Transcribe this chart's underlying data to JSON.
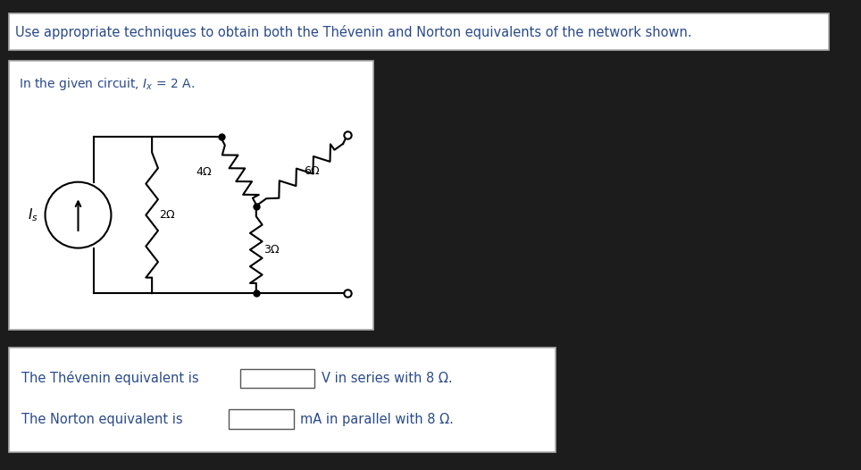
{
  "bg_color": "#1c1c1c",
  "title_text": "Use appropriate techniques to obtain both the Thévenin and Norton equivalents of the network shown.",
  "title_text_color": "#2a4a8a",
  "circuit_label": "In the given circuit, $I_x$ = 2 A.",
  "thevenin_text": "The Thévenin equivalent is",
  "thevenin_suffix": "V in series with 8 Ω.",
  "norton_text": "The Norton equivalent is",
  "norton_suffix": "mA in parallel with 8 Ω.",
  "text_color": "#2a4a8a",
  "black": "#1a1a1a"
}
